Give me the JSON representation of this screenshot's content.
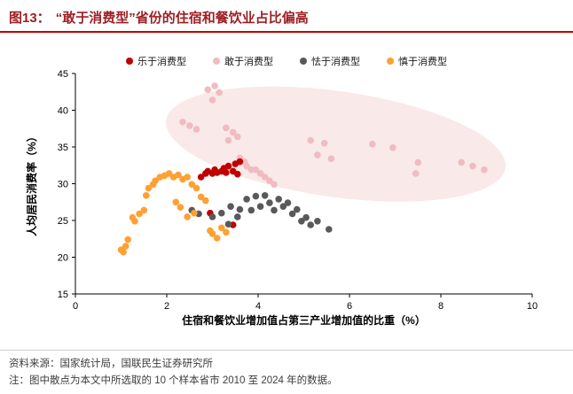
{
  "header": {
    "prefix": "图13：",
    "title": "“敢于消费型”省份的住宿和餐饮业占比偏高"
  },
  "footer": {
    "source": "资料来源：国家统计局，国联民生证券研究所",
    "note": "注：图中散点为本文中所选取的 10 个样本省市 2010 至 2024 年的数据。"
  },
  "theme": {
    "accent_red": "#c00000",
    "title_color": "#9e1f23",
    "text_color": "#111111",
    "muted_text": "#3d3d3d",
    "divider": "#cfcfcf",
    "background": "#ffffff"
  },
  "chart_data": {
    "type": "scatter",
    "title": "“敢于消费型”省份的住宿和餐饮业占比偏高",
    "xlabel": "住宿和餐饮业增加值占第三产业增加值的比重（%）",
    "ylabel": "人均居民消费率（%）",
    "xlim": [
      0,
      10
    ],
    "ylim": [
      15,
      45
    ],
    "xticks": [
      0,
      2,
      4,
      6,
      8,
      10
    ],
    "yticks": [
      15,
      20,
      25,
      30,
      35,
      40,
      45
    ],
    "grid": false,
    "legend_position": "top",
    "marker_radius": 3.8,
    "draw_order": [
      1,
      0,
      2,
      3
    ],
    "highlight_ellipse": {
      "cx": 5.7,
      "cy": 35.4,
      "rx": 3.75,
      "ry": 7.2,
      "rotation_deg": 8,
      "color": "#f5dadb",
      "opacity": 0.6
    },
    "series": [
      {
        "name": "乐于消费型",
        "color": "#c00000",
        "points": [
          [
            2.75,
            30.9
          ],
          [
            2.85,
            31.4
          ],
          [
            2.9,
            31.7
          ],
          [
            3.0,
            31.4
          ],
          [
            3.05,
            31.9
          ],
          [
            3.1,
            31.5
          ],
          [
            3.2,
            31.7
          ],
          [
            3.25,
            32.1
          ],
          [
            3.3,
            31.5
          ],
          [
            3.35,
            32.4
          ],
          [
            3.45,
            31.7
          ],
          [
            3.5,
            32.7
          ],
          [
            3.55,
            31.3
          ],
          [
            3.6,
            33.0
          ],
          [
            2.95,
            26.0
          ],
          [
            3.45,
            24.4
          ]
        ]
      },
      {
        "name": "敢于消费型",
        "color": "#f0bcc1",
        "points": [
          [
            2.9,
            42.8
          ],
          [
            3.05,
            43.3
          ],
          [
            3.15,
            42.4
          ],
          [
            3.0,
            41.4
          ],
          [
            2.35,
            38.4
          ],
          [
            2.5,
            37.9
          ],
          [
            2.65,
            37.4
          ],
          [
            3.3,
            37.6
          ],
          [
            3.45,
            37.0
          ],
          [
            3.55,
            36.4
          ],
          [
            3.35,
            35.9
          ],
          [
            3.6,
            33.5
          ],
          [
            3.7,
            33.0
          ],
          [
            3.75,
            32.4
          ],
          [
            3.85,
            31.9
          ],
          [
            3.95,
            31.9
          ],
          [
            4.05,
            31.4
          ],
          [
            4.15,
            30.9
          ],
          [
            4.25,
            30.4
          ],
          [
            4.35,
            29.9
          ],
          [
            5.15,
            35.9
          ],
          [
            5.45,
            35.5
          ],
          [
            6.5,
            35.4
          ],
          [
            6.95,
            34.9
          ],
          [
            5.3,
            33.9
          ],
          [
            5.6,
            33.4
          ],
          [
            7.5,
            32.9
          ],
          [
            8.45,
            32.9
          ],
          [
            8.7,
            32.4
          ],
          [
            8.95,
            31.9
          ],
          [
            7.45,
            31.4
          ]
        ]
      },
      {
        "name": "怯于消费型",
        "color": "#595959",
        "points": [
          [
            2.55,
            26.4
          ],
          [
            2.7,
            25.9
          ],
          [
            3.0,
            25.5
          ],
          [
            3.2,
            26.0
          ],
          [
            3.35,
            24.5
          ],
          [
            3.4,
            26.9
          ],
          [
            3.55,
            25.5
          ],
          [
            3.6,
            26.5
          ],
          [
            3.75,
            27.9
          ],
          [
            3.85,
            26.4
          ],
          [
            3.95,
            28.3
          ],
          [
            4.05,
            26.9
          ],
          [
            4.15,
            28.4
          ],
          [
            4.25,
            27.4
          ],
          [
            4.35,
            26.4
          ],
          [
            4.45,
            27.9
          ],
          [
            4.55,
            26.9
          ],
          [
            4.65,
            27.4
          ],
          [
            4.75,
            25.9
          ],
          [
            4.85,
            26.5
          ],
          [
            4.95,
            24.9
          ],
          [
            5.05,
            25.4
          ],
          [
            5.15,
            24.4
          ],
          [
            5.3,
            24.9
          ],
          [
            5.55,
            23.8
          ]
        ]
      },
      {
        "name": "慎于消费型",
        "color": "#ffa033",
        "points": [
          [
            1.0,
            21.0
          ],
          [
            1.05,
            20.7
          ],
          [
            1.1,
            21.5
          ],
          [
            1.15,
            22.4
          ],
          [
            1.25,
            25.4
          ],
          [
            1.3,
            24.9
          ],
          [
            1.4,
            25.9
          ],
          [
            1.5,
            26.4
          ],
          [
            1.55,
            28.4
          ],
          [
            1.6,
            29.4
          ],
          [
            1.7,
            29.9
          ],
          [
            1.75,
            30.4
          ],
          [
            1.85,
            30.9
          ],
          [
            1.95,
            31.1
          ],
          [
            2.05,
            31.4
          ],
          [
            2.15,
            30.9
          ],
          [
            2.25,
            31.2
          ],
          [
            2.35,
            30.6
          ],
          [
            2.45,
            30.9
          ],
          [
            2.55,
            29.9
          ],
          [
            2.65,
            29.4
          ],
          [
            2.75,
            28.2
          ],
          [
            2.85,
            27.7
          ],
          [
            2.45,
            25.5
          ],
          [
            2.6,
            26.0
          ],
          [
            2.2,
            27.5
          ],
          [
            2.3,
            26.8
          ],
          [
            2.95,
            23.6
          ],
          [
            3.0,
            23.2
          ],
          [
            3.1,
            22.6
          ],
          [
            3.2,
            24.0
          ],
          [
            3.3,
            23.4
          ]
        ]
      }
    ]
  }
}
